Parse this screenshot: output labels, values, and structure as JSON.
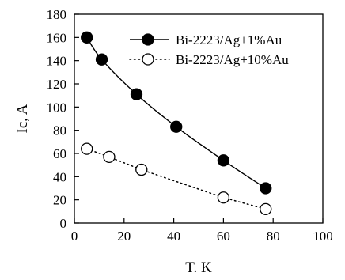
{
  "chart_data": {
    "type": "line",
    "xlabel": "T. K",
    "ylabel": "Ic, A",
    "xlim": [
      0,
      100
    ],
    "ylim": [
      0,
      180
    ],
    "xticks": [
      "0",
      "20",
      "40",
      "60",
      "80",
      "100"
    ],
    "yticks": [
      "0",
      "20",
      "40",
      "60",
      "80",
      "100",
      "120",
      "140",
      "160",
      "180"
    ],
    "grid": false,
    "legend_position": "top-right",
    "series": [
      {
        "name": "Bi-2223/Ag+1%Au",
        "marker": "filled-circle",
        "line": "solid-smooth",
        "color": "#000000",
        "x": [
          5,
          11,
          25,
          41,
          60,
          77
        ],
        "y": [
          160,
          141,
          111,
          83,
          54,
          30
        ]
      },
      {
        "name": "Bi-2223/Ag+10%Au",
        "marker": "open-circle",
        "line": "dotted",
        "color": "#000000",
        "x": [
          5,
          14,
          27,
          60,
          77
        ],
        "y": [
          64,
          57,
          46,
          22,
          12
        ]
      }
    ]
  }
}
